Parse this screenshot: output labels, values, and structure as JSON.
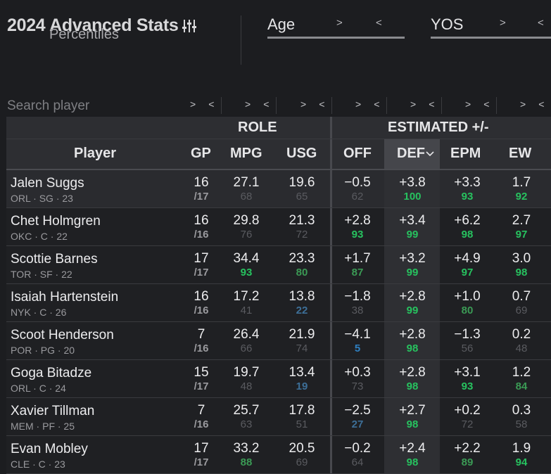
{
  "header": {
    "title": "2024 Advanced Stats",
    "subtitle": "Percentiles",
    "filters": [
      {
        "label": "Age",
        "next": ">",
        "prev": "<"
      },
      {
        "label": "YOS",
        "next": ">",
        "prev": "<"
      }
    ]
  },
  "search": {
    "placeholder": "Search player"
  },
  "sort_arrows": {
    "next": ">",
    "prev": "<"
  },
  "groups": {
    "role": "ROLE",
    "estimated": "ESTIMATED +/-"
  },
  "columns": {
    "player": "Player",
    "gp": "GP",
    "mpg": "MPG",
    "usg": "USG",
    "off": "OFF",
    "def": "DEF",
    "epm": "EPM",
    "ew": "EW"
  },
  "colors": {
    "high": "#27c25f",
    "mid_high": "#3b9a55",
    "mid": "#5f6b63",
    "neutral": "#5a5b60",
    "low": "#2f7fc0",
    "low_mid": "#3d6f98"
  },
  "rows": [
    {
      "name": "Jalen Suggs",
      "meta": "ORL · SG · 23",
      "gp": "16",
      "gp_of": "/17",
      "mpg": "27.1",
      "mpg_p": "68",
      "usg": "19.6",
      "usg_p": "65",
      "off": "−0.5",
      "off_p": "62",
      "def": "+3.8",
      "def_p": "100",
      "epm": "+3.3",
      "epm_p": "93",
      "ew": "1.7",
      "ew_p": "92"
    },
    {
      "name": "Chet Holmgren",
      "meta": "OKC · C · 22",
      "gp": "16",
      "gp_of": "/16",
      "mpg": "29.8",
      "mpg_p": "76",
      "usg": "21.3",
      "usg_p": "72",
      "off": "+2.8",
      "off_p": "93",
      "def": "+3.4",
      "def_p": "99",
      "epm": "+6.2",
      "epm_p": "98",
      "ew": "2.7",
      "ew_p": "97"
    },
    {
      "name": "Scottie Barnes",
      "meta": "TOR · SF · 22",
      "gp": "17",
      "gp_of": "/17",
      "mpg": "34.4",
      "mpg_p": "93",
      "usg": "23.3",
      "usg_p": "80",
      "off": "+1.7",
      "off_p": "87",
      "def": "+3.2",
      "def_p": "99",
      "epm": "+4.9",
      "epm_p": "97",
      "ew": "3.0",
      "ew_p": "98"
    },
    {
      "name": "Isaiah Hartenstein",
      "meta": "NYK · C · 26",
      "gp": "16",
      "gp_of": "/16",
      "mpg": "17.2",
      "mpg_p": "41",
      "usg": "13.8",
      "usg_p": "22",
      "off": "−1.8",
      "off_p": "38",
      "def": "+2.8",
      "def_p": "99",
      "epm": "+1.0",
      "epm_p": "80",
      "ew": "0.7",
      "ew_p": "69"
    },
    {
      "name": "Scoot Henderson",
      "meta": "POR · PG · 20",
      "gp": "7",
      "gp_of": "/16",
      "mpg": "26.4",
      "mpg_p": "66",
      "usg": "21.9",
      "usg_p": "74",
      "off": "−4.1",
      "off_p": "5",
      "def": "+2.8",
      "def_p": "98",
      "epm": "−1.3",
      "epm_p": "56",
      "ew": "0.2",
      "ew_p": "48"
    },
    {
      "name": "Goga Bitadze",
      "meta": "ORL · C · 24",
      "gp": "15",
      "gp_of": "/17",
      "mpg": "19.7",
      "mpg_p": "48",
      "usg": "13.4",
      "usg_p": "19",
      "off": "+0.3",
      "off_p": "73",
      "def": "+2.8",
      "def_p": "98",
      "epm": "+3.1",
      "epm_p": "93",
      "ew": "1.2",
      "ew_p": "84"
    },
    {
      "name": "Xavier Tillman",
      "meta": "MEM · PF · 25",
      "gp": "7",
      "gp_of": "/16",
      "mpg": "25.7",
      "mpg_p": "63",
      "usg": "17.8",
      "usg_p": "51",
      "off": "−2.5",
      "off_p": "27",
      "def": "+2.7",
      "def_p": "98",
      "epm": "+0.2",
      "epm_p": "72",
      "ew": "0.3",
      "ew_p": "58"
    },
    {
      "name": "Evan Mobley",
      "meta": "CLE · C · 23",
      "gp": "17",
      "gp_of": "/17",
      "mpg": "33.2",
      "mpg_p": "88",
      "usg": "20.5",
      "usg_p": "69",
      "off": "−0.2",
      "off_p": "64",
      "def": "+2.4",
      "def_p": "98",
      "epm": "+2.2",
      "epm_p": "89",
      "ew": "1.9",
      "ew_p": "94"
    }
  ]
}
